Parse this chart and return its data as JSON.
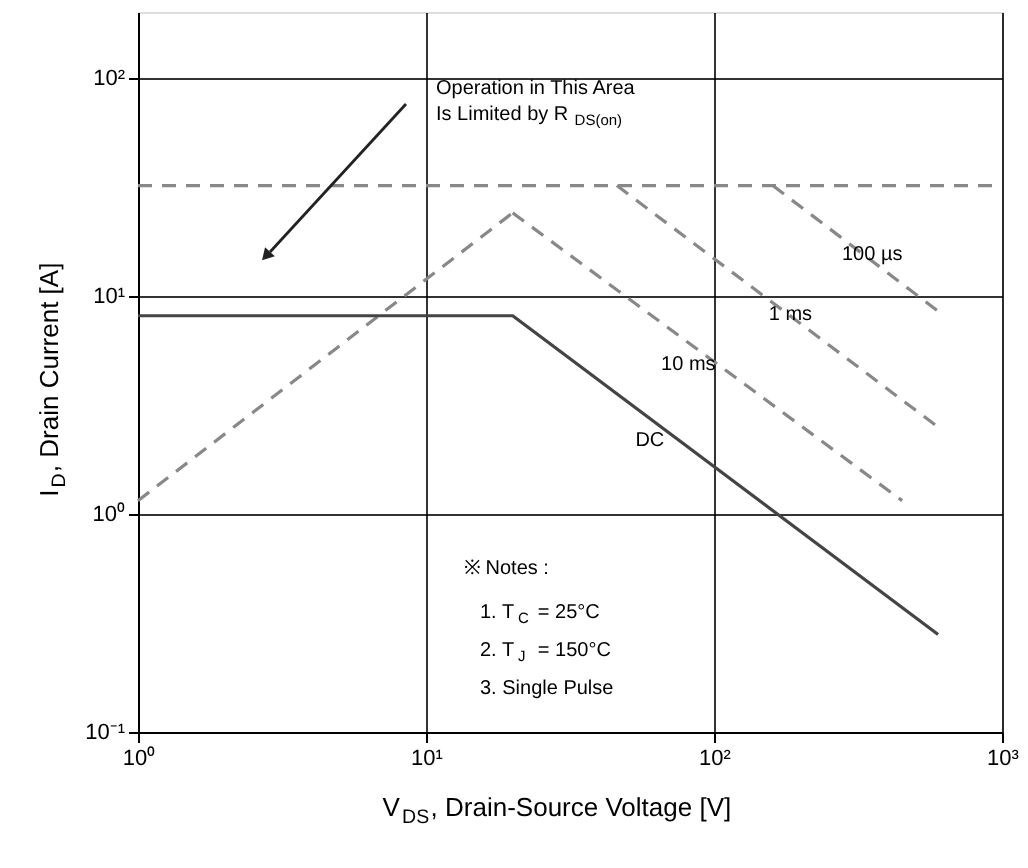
{
  "chart_data": {
    "type": "line",
    "xlabel": "V$_{DS}$, Drain-Source Voltage [V]",
    "ylabel": "I$_{D}$, Drain Current [A]",
    "log": "xy",
    "grid": true,
    "marker": "none",
    "xlim": [
      1,
      1000
    ],
    "ylim": [
      0.1,
      200
    ],
    "xticks": [
      {
        "value": 1,
        "label": "10⁰"
      },
      {
        "value": 10,
        "label": "10¹"
      },
      {
        "value": 100,
        "label": "10²"
      },
      {
        "value": 1000,
        "label": "10³"
      }
    ],
    "yticks": [
      {
        "value": 0.1,
        "label": "10⁻¹"
      },
      {
        "value": 1,
        "label": "10⁰"
      },
      {
        "value": 10,
        "label": "10¹"
      },
      {
        "value": 100,
        "label": "10²"
      }
    ],
    "series": [
      {
        "color": "#888888",
        "line_style": "dashed",
        "x": [
          1,
          1000
        ],
        "values": [
          32,
          32
        ]
      },
      {
        "color": "#888888",
        "line_style": "dashed",
        "x": [
          1,
          20
        ],
        "values": [
          1.15,
          24
        ]
      },
      {
        "color": "#888888",
        "line_style": "dashed",
        "x": [
          160,
          600
        ],
        "values": [
          32,
          8.5
        ]
      },
      {
        "color": "#888888",
        "line_style": "dashed",
        "x": [
          46,
          600
        ],
        "values": [
          32,
          2.5
        ]
      },
      {
        "color": "#888888",
        "line_style": "dashed",
        "x": [
          20,
          450
        ],
        "values": [
          24,
          1.15
        ]
      },
      {
        "color": "#444444",
        "line_style": "solid",
        "x": [
          1,
          20,
          600
        ],
        "values": [
          8.1,
          8.1,
          0.28
        ]
      }
    ],
    "annotations": [
      "Operation in This Area\nIs Limited by R$_{DS(on)}$",
      "100 µs",
      "1 ms",
      "10 ms",
      "DC",
      "※ Notes :",
      "1. T$_{C}$ = 25°C",
      "2. T$_{J}$ = 150°C",
      "3. Single Pulse"
    ]
  }
}
